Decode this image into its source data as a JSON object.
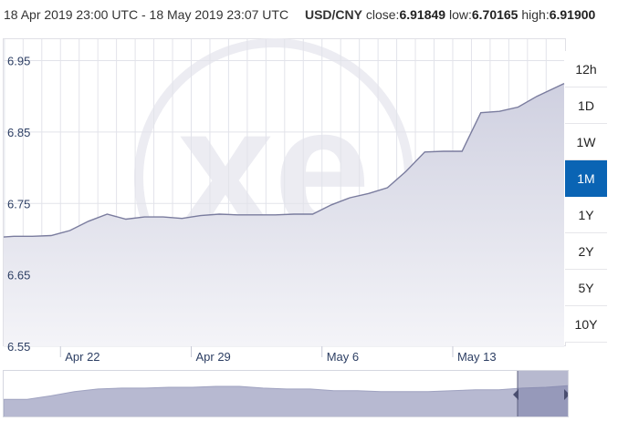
{
  "header": {
    "range_text": "18 Apr 2019 23:00 UTC - 18 May 2019 23:07 UTC",
    "pair": "USD/CNY",
    "close_label": "close:",
    "close_value": "6.91849",
    "low_label": "low:",
    "low_value": "6.70165",
    "high_label": "high:",
    "high_value": "6.91900"
  },
  "range_buttons": [
    {
      "label": "12h",
      "active": false
    },
    {
      "label": "1D",
      "active": false
    },
    {
      "label": "1W",
      "active": false
    },
    {
      "label": "1M",
      "active": true
    },
    {
      "label": "1Y",
      "active": false
    },
    {
      "label": "2Y",
      "active": false
    },
    {
      "label": "5Y",
      "active": false
    },
    {
      "label": "10Y",
      "active": false
    }
  ],
  "colors": {
    "line": "#7a7c9e",
    "area_top": "#cfd0e0",
    "area_bottom": "#f4f4f8",
    "grid": "#e2e3ea",
    "tick": "#2c3e63",
    "active_button": "#0a64b4",
    "navigator_fill": "#b7b9d1",
    "navigator_selected": "#7c80a8",
    "watermark": "#ececf2"
  },
  "watermark": {
    "icon": "xe-logo-watermark"
  },
  "chart_data": {
    "type": "area",
    "title": "",
    "xlabel": "",
    "ylabel": "",
    "x_range": [
      "2019-04-18",
      "2019-05-18"
    ],
    "ylim": [
      6.55,
      6.98
    ],
    "yticks": [
      "6.55",
      "6.65",
      "6.75",
      "6.85",
      "6.95"
    ],
    "xticks": [
      {
        "label": "Apr 22",
        "date": "2019-04-22"
      },
      {
        "label": "Apr 29",
        "date": "2019-04-29"
      },
      {
        "label": "May 6",
        "date": "2019-05-06"
      },
      {
        "label": "May 13",
        "date": "2019-05-13"
      }
    ],
    "grid": true,
    "series": [
      {
        "points": [
          [
            "2019-04-18",
            6.703
          ],
          [
            "2019-04-19",
            6.704
          ],
          [
            "2019-04-20",
            6.704
          ],
          [
            "2019-04-21",
            6.705
          ],
          [
            "2019-04-22",
            6.712
          ],
          [
            "2019-04-23",
            6.725
          ],
          [
            "2019-04-24",
            6.735
          ],
          [
            "2019-04-25",
            6.728
          ],
          [
            "2019-04-26",
            6.731
          ],
          [
            "2019-04-27",
            6.731
          ],
          [
            "2019-04-28",
            6.729
          ],
          [
            "2019-04-29",
            6.733
          ],
          [
            "2019-04-30",
            6.735
          ],
          [
            "2019-05-01",
            6.734
          ],
          [
            "2019-05-02",
            6.734
          ],
          [
            "2019-05-03",
            6.734
          ],
          [
            "2019-05-04",
            6.735
          ],
          [
            "2019-05-05",
            6.735
          ],
          [
            "2019-05-06",
            6.748
          ],
          [
            "2019-05-07",
            6.758
          ],
          [
            "2019-05-08",
            6.764
          ],
          [
            "2019-05-09",
            6.772
          ],
          [
            "2019-05-10",
            6.795
          ],
          [
            "2019-05-11",
            6.822
          ],
          [
            "2019-05-12",
            6.823
          ],
          [
            "2019-05-13",
            6.823
          ],
          [
            "2019-05-14",
            6.877
          ],
          [
            "2019-05-15",
            6.879
          ],
          [
            "2019-05-16",
            6.885
          ],
          [
            "2019-05-17",
            6.9
          ],
          [
            "2019-05-18",
            6.918
          ]
        ]
      }
    ],
    "navigator": {
      "selected_window": "last 1M",
      "points": [
        6.62,
        6.62,
        6.66,
        6.71,
        6.74,
        6.75,
        6.75,
        6.76,
        6.76,
        6.77,
        6.77,
        6.75,
        6.74,
        6.74,
        6.72,
        6.72,
        6.71,
        6.71,
        6.71,
        6.72,
        6.73,
        6.73,
        6.75,
        6.76,
        6.78
      ]
    }
  }
}
